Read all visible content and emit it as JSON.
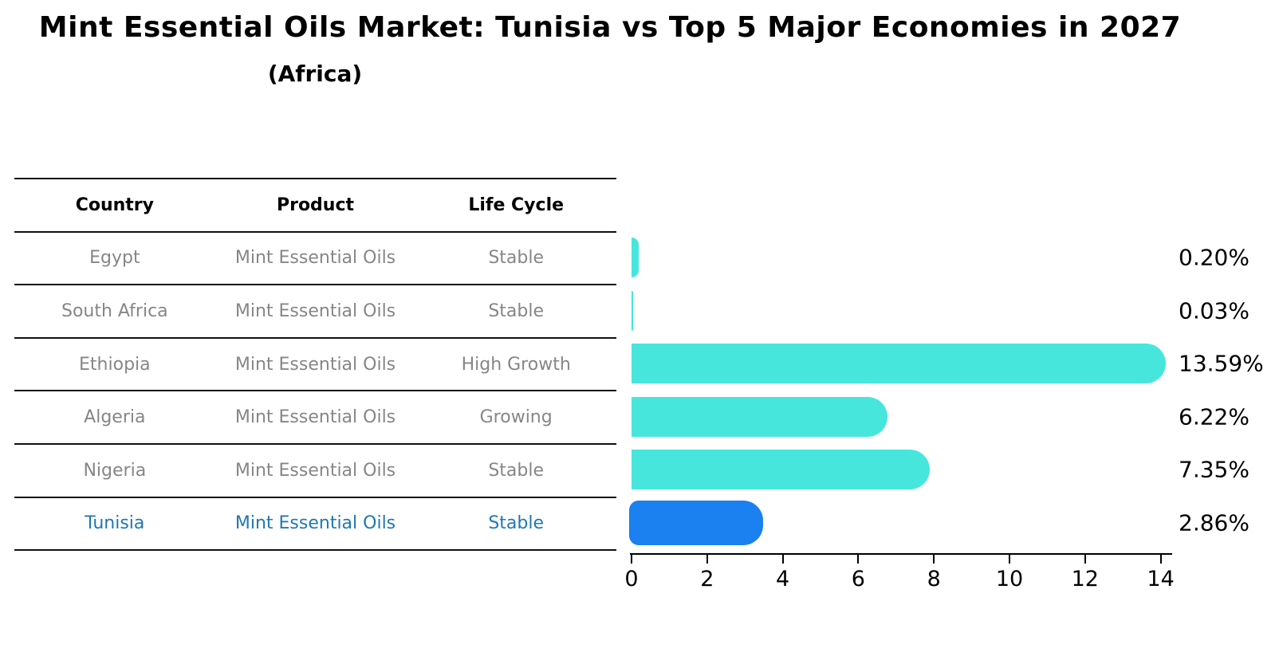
{
  "header": {
    "title": "Mint Essential Oils Market: Tunisia vs Top 5 Major Economies in 2027",
    "subtitle": "(Africa)"
  },
  "table": {
    "columns": [
      "Country",
      "Product",
      "Life Cycle"
    ],
    "rows": [
      {
        "country": "Egypt",
        "product": "Mint Essential Oils",
        "life_cycle": "Stable",
        "highlight": false
      },
      {
        "country": "South Africa",
        "product": "Mint Essential Oils",
        "life_cycle": "Stable",
        "highlight": false
      },
      {
        "country": "Ethiopia",
        "product": "Mint Essential Oils",
        "life_cycle": "High Growth",
        "highlight": false
      },
      {
        "country": "Algeria",
        "product": "Mint Essential Oils",
        "life_cycle": "Growing",
        "highlight": false
      },
      {
        "country": "Nigeria",
        "product": "Mint Essential Oils",
        "life_cycle": "Stable",
        "highlight": false
      },
      {
        "country": "Tunisia",
        "product": "Mint Essential Oils",
        "life_cycle": "Stable",
        "highlight": true
      }
    ]
  },
  "chart_data": {
    "type": "bar",
    "orientation": "horizontal",
    "title": "Mint Essential Oils Market: Tunisia vs Top 5 Major Economies in 2027",
    "subtitle": "(Africa)",
    "categories": [
      "Egypt",
      "South Africa",
      "Ethiopia",
      "Algeria",
      "Nigeria",
      "Tunisia"
    ],
    "values": [
      0.2,
      0.03,
      13.59,
      6.22,
      7.35,
      2.86
    ],
    "value_labels": [
      "0.20%",
      "0.03%",
      "13.59%",
      "6.22%",
      "7.35%",
      "2.86%"
    ],
    "x_ticks": [
      0,
      2,
      4,
      6,
      8,
      10,
      12,
      14
    ],
    "x_tick_labels": [
      "0",
      "2",
      "4",
      "6",
      "8",
      "10",
      "12",
      "14"
    ],
    "xlim": [
      0,
      14
    ],
    "xlabel": "",
    "ylabel": "",
    "grid": false,
    "legend": false,
    "bar_color": "#47E6DD",
    "highlight_bar_color": "#1B80F0",
    "highlight_index": 5,
    "highlight_text_color": "#1F77B4"
  }
}
